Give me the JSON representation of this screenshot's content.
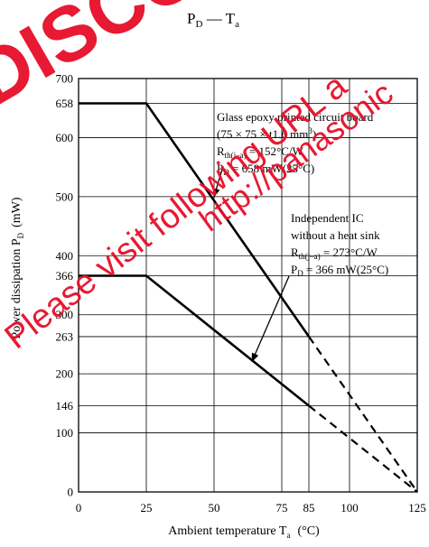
{
  "chart_data": {
    "type": "line",
    "title": {
      "main": "P",
      "main_sub": "D",
      "dash": " — ",
      "second": "T",
      "second_sub": "a"
    },
    "xlabel": {
      "main": "Ambient temperature T",
      "sub": "a",
      "unit": "(°C)"
    },
    "ylabel": {
      "main": "Power dissipation P",
      "sub": "D",
      "unit": "(mW)"
    },
    "xlim": [
      0,
      125
    ],
    "ylim": [
      0,
      700
    ],
    "x_ticks": [
      {
        "value": 0,
        "label": "0"
      },
      {
        "value": 25,
        "label": "25"
      },
      {
        "value": 50,
        "label": "50"
      },
      {
        "value": 75,
        "label": "75"
      },
      {
        "value": 85,
        "label": "85"
      },
      {
        "value": 100,
        "label": "100"
      },
      {
        "value": 125,
        "label": "125"
      }
    ],
    "y_ticks": [
      {
        "value": 0,
        "label": "0"
      },
      {
        "value": 100,
        "label": "100"
      },
      {
        "value": 146,
        "label": "146"
      },
      {
        "value": 200,
        "label": "200"
      },
      {
        "value": 263,
        "label": "263"
      },
      {
        "value": 300,
        "label": "300"
      },
      {
        "value": 366,
        "label": "366"
      },
      {
        "value": 400,
        "label": "400"
      },
      {
        "value": 500,
        "label": "500"
      },
      {
        "value": 600,
        "label": "600"
      },
      {
        "value": 658,
        "label": "658"
      },
      {
        "value": 700,
        "label": "700"
      }
    ],
    "grid": true,
    "series": [
      {
        "solid": [
          [
            0,
            658
          ],
          [
            25,
            658
          ],
          [
            85,
            263
          ]
        ],
        "dashed": [
          [
            85,
            263
          ],
          [
            125,
            0
          ]
        ]
      },
      {
        "solid": [
          [
            0,
            366
          ],
          [
            25,
            366
          ],
          [
            85,
            146
          ]
        ],
        "dashed": [
          [
            85,
            146
          ],
          [
            125,
            0
          ]
        ]
      }
    ],
    "annotations": [
      {
        "lines": [
          {
            "text": "Glass epoxy printed circuit board"
          },
          {
            "text": "(75 × 75 × t1.6 mm",
            "sup": "3",
            "tail": ")"
          },
          {
            "text": "R",
            "sub": "th(j–a)",
            "tail": " = 152°C/W"
          },
          {
            "text": "P",
            "sub": "D",
            "tail": " = 658 mW(25°C)"
          }
        ],
        "arrow_to": [
          50,
          500
        ]
      },
      {
        "lines": [
          {
            "text": "Independent IC"
          },
          {
            "text": "without a heat sink"
          },
          {
            "text": "R",
            "sub": "th(j–a)",
            "tail": " = 273°C/W"
          },
          {
            "text": "P",
            "sub": "D",
            "tail": " = 366 mW(25°C)"
          }
        ],
        "arrow_to": [
          64,
          221
        ]
      }
    ]
  },
  "watermark": {
    "line1": "DISCONT",
    "line2": "Please visit following URL a",
    "line3": "http://panasonic"
  },
  "colors": {
    "line": "#000000",
    "grid": "#000000",
    "watermark": "#e8102a"
  }
}
